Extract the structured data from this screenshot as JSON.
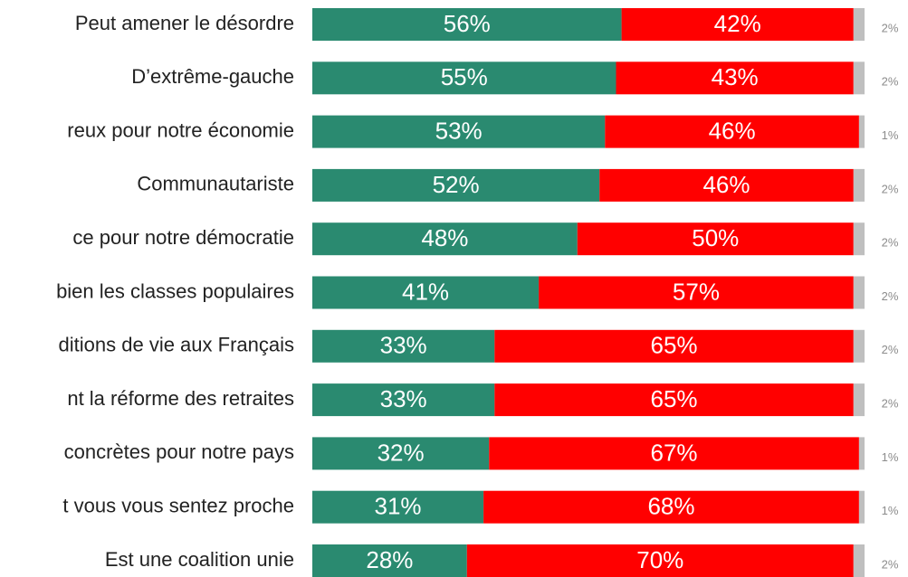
{
  "chart_data": {
    "type": "bar",
    "orientation": "horizontal",
    "stacked": true,
    "categories": [
      "Peut amener le désordre",
      "D’extrême-gauche",
      "reux pour notre économie",
      "Communautariste",
      "ce pour notre démocratie",
      "bien les classes populaires",
      "ditions de vie aux Français",
      "nt la réforme des retraites",
      "concrètes pour notre pays",
      "t vous vous sentez proche",
      "Est une coalition unie"
    ],
    "series": [
      {
        "color": "#2a8a70",
        "values": [
          56,
          55,
          53,
          52,
          48,
          41,
          33,
          33,
          32,
          31,
          28
        ],
        "value_labels": [
          "56%",
          "55%",
          "53%",
          "52%",
          "48%",
          "41%",
          "33%",
          "33%",
          "32%",
          "31%",
          "28%"
        ]
      },
      {
        "color": "#ff0000",
        "values": [
          42,
          43,
          46,
          46,
          50,
          57,
          65,
          65,
          67,
          68,
          70
        ],
        "value_labels": [
          "42%",
          "43%",
          "46%",
          "46%",
          "50%",
          "57%",
          "65%",
          "65%",
          "67%",
          "68%",
          "70%"
        ]
      },
      {
        "color": "#bfbfbf",
        "values": [
          2,
          2,
          1,
          2,
          2,
          2,
          2,
          2,
          1,
          1,
          2
        ],
        "value_labels": [
          "2%",
          "2%",
          "1%",
          "2%",
          "2%",
          "2%",
          "2%",
          "2%",
          "1%",
          "1%",
          "2%"
        ]
      }
    ],
    "xlim": [
      0,
      100
    ]
  }
}
